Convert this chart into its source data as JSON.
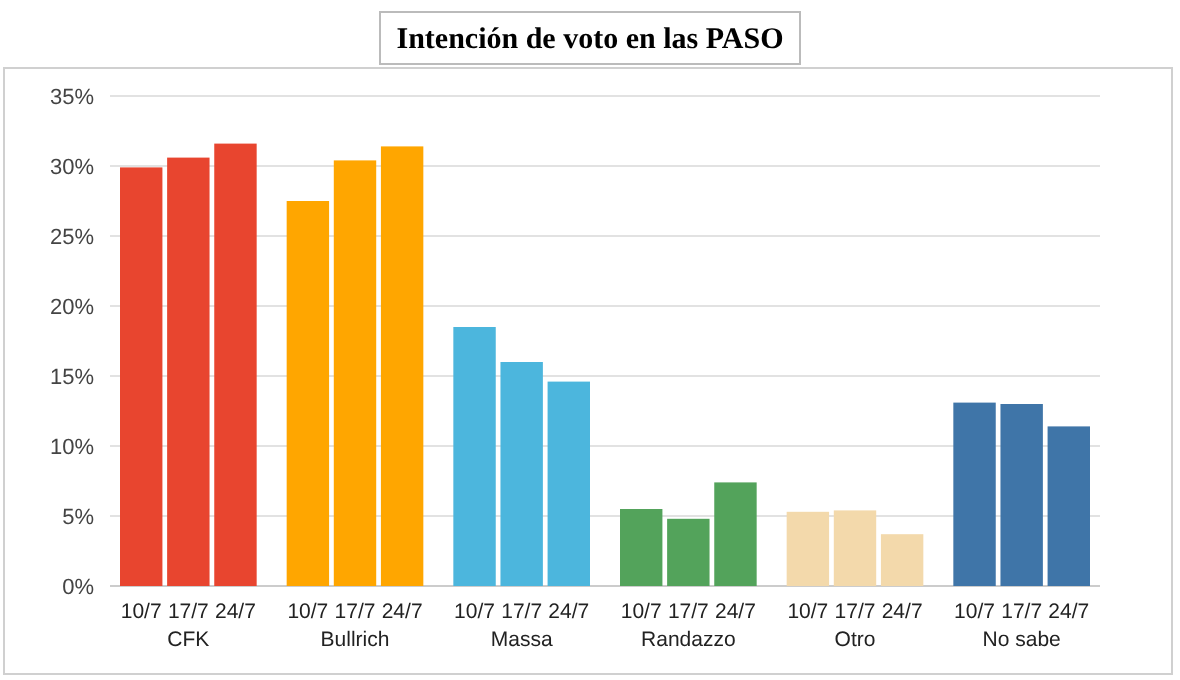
{
  "chart_data": {
    "type": "bar",
    "title": "Intención de voto en las PASO",
    "categories": [
      "CFK",
      "Bullrich",
      "Massa",
      "Randazzo",
      "Otro",
      "No sabe"
    ],
    "series": [
      {
        "name": "10/7",
        "colors": [
          "#e8452f",
          "#ffa600",
          "#4cb6dd",
          "#53a35b",
          "#f3d9ab",
          "#3f75a8"
        ],
        "values": [
          29.9,
          27.5,
          18.5,
          5.5,
          5.3,
          13.1
        ]
      },
      {
        "name": "17/7",
        "colors": [
          "#e8452f",
          "#ffa600",
          "#4cb6dd",
          "#53a35b",
          "#f3d9ab",
          "#3f75a8"
        ],
        "values": [
          30.6,
          30.4,
          16.0,
          4.8,
          5.4,
          13.0
        ]
      },
      {
        "name": "24/7",
        "colors": [
          "#e8452f",
          "#ffa600",
          "#4cb6dd",
          "#53a35b",
          "#f3d9ab",
          "#3f75a8"
        ],
        "values": [
          31.6,
          31.4,
          14.6,
          7.4,
          3.7,
          11.4
        ]
      }
    ],
    "ylim": [
      0,
      35
    ],
    "yticks": [
      {
        "value": 0,
        "label": "0%"
      },
      {
        "value": 5,
        "label": "5%"
      },
      {
        "value": 10,
        "label": "10%"
      },
      {
        "value": 15,
        "label": "15%"
      },
      {
        "value": 20,
        "label": "20%"
      },
      {
        "value": 25,
        "label": "25%"
      },
      {
        "value": 30,
        "label": "30%"
      },
      {
        "value": 35,
        "label": "35%"
      }
    ],
    "grid": "y"
  }
}
